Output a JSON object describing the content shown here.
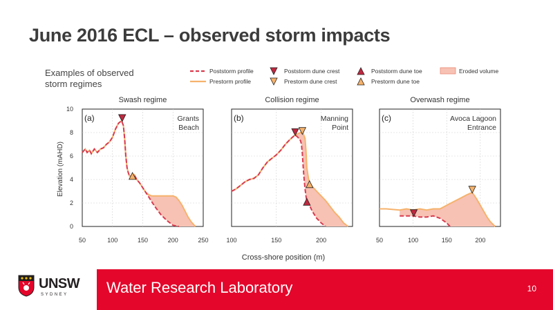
{
  "slide": {
    "title": "June 2016 ECL – observed storm impacts",
    "page_number": "10"
  },
  "footer": {
    "lab_name": "Water Research Laboratory",
    "logo_text": "UNSW",
    "logo_subtext": "SYDNEY",
    "brand_color": "#e4062b"
  },
  "figure": {
    "heading_line1": "Examples of observed",
    "heading_line2": "storm regimes",
    "xlabel": "Cross-shore position (m)",
    "ylabel": "Elevation (mAHD)"
  },
  "legend": {
    "poststorm_profile": "Poststorm profile",
    "prestorm_profile": "Prestorm profile",
    "poststorm_crest": "Poststorm dune crest",
    "prestorm_crest": "Prestorm dune crest",
    "poststorm_toe": "Poststorm dune toe",
    "prestorm_toe": "Prestorm dune toe",
    "eroded_volume": "Eroded volume"
  },
  "colors": {
    "prestorm": "#f6b26b",
    "poststorm": "#d93a4e",
    "eroded": "#f7c2b4",
    "crest_post": "#c0283f",
    "crest_pre": "#f6b26b"
  },
  "chart_data": [
    {
      "type": "line",
      "panel_label": "(a)",
      "title": "Swash regime",
      "site": [
        "Grants",
        "Beach"
      ],
      "xlim": [
        50,
        250
      ],
      "ylim": [
        0,
        10
      ],
      "xticks": [
        50,
        100,
        150,
        200,
        250
      ],
      "yticks": [
        0,
        2,
        4,
        6,
        8,
        10
      ],
      "series": [
        {
          "name": "Prestorm profile",
          "x": [
            50,
            55,
            58,
            62,
            65,
            70,
            75,
            80,
            85,
            90,
            95,
            100,
            105,
            110,
            115,
            118,
            120,
            122,
            124,
            126,
            128,
            130,
            133,
            136,
            140,
            145,
            150,
            155,
            160,
            165,
            170,
            180,
            190,
            200,
            205,
            210,
            215,
            220,
            225,
            230,
            237
          ],
          "y": [
            6.3,
            6.6,
            6.3,
            6.5,
            6.2,
            6.6,
            6.3,
            6.6,
            6.7,
            7.0,
            7.2,
            7.6,
            8.3,
            8.8,
            9.0,
            8.6,
            7.5,
            6.0,
            5.0,
            4.6,
            4.3,
            4.3,
            4.2,
            4.4,
            4.0,
            3.7,
            3.3,
            2.9,
            2.7,
            2.6,
            2.6,
            2.6,
            2.6,
            2.6,
            2.5,
            2.2,
            1.8,
            1.3,
            0.8,
            0.4,
            0.0
          ]
        },
        {
          "name": "Poststorm profile",
          "x": [
            50,
            55,
            58,
            62,
            65,
            70,
            75,
            80,
            85,
            90,
            95,
            100,
            105,
            110,
            115,
            118,
            120,
            122,
            124,
            126,
            128,
            130,
            133,
            136,
            140,
            145,
            150,
            155,
            160,
            165,
            170,
            180,
            190,
            200,
            210
          ],
          "y": [
            6.3,
            6.6,
            6.3,
            6.5,
            6.2,
            6.6,
            6.3,
            6.6,
            6.7,
            7.0,
            7.2,
            7.6,
            8.3,
            8.8,
            9.0,
            8.6,
            7.5,
            6.0,
            5.0,
            4.6,
            4.3,
            4.3,
            4.2,
            4.4,
            4.0,
            3.7,
            3.3,
            2.9,
            2.5,
            2.1,
            1.7,
            1.0,
            0.5,
            0.1,
            0.0
          ]
        }
      ],
      "markers": [
        {
          "kind": "prestorm_crest",
          "x": 116,
          "y": 9.0
        },
        {
          "kind": "poststorm_crest",
          "x": 116,
          "y": 9.0
        },
        {
          "kind": "prestorm_toe",
          "x": 133,
          "y": 4.3
        }
      ]
    },
    {
      "type": "line",
      "panel_label": "(b)",
      "title": "Collision regime",
      "site": [
        "Manning",
        "Point"
      ],
      "xlim": [
        100,
        235
      ],
      "ylim": [
        0,
        10
      ],
      "xticks": [
        100,
        150,
        200
      ],
      "yticks": [
        0,
        2,
        4,
        6,
        8,
        10
      ],
      "series": [
        {
          "name": "Prestorm profile",
          "x": [
            100,
            105,
            110,
            115,
            120,
            125,
            130,
            135,
            140,
            145,
            150,
            155,
            160,
            165,
            168,
            171,
            174,
            177,
            180,
            182,
            183,
            184,
            186,
            188,
            190,
            195,
            200,
            205,
            210,
            215,
            220,
            225,
            230
          ],
          "y": [
            3.0,
            3.2,
            3.5,
            3.8,
            4.0,
            4.1,
            4.4,
            5.0,
            5.5,
            5.8,
            6.1,
            6.5,
            7.0,
            7.4,
            7.6,
            7.8,
            7.9,
            8.0,
            7.9,
            7.5,
            6.5,
            5.0,
            4.0,
            3.6,
            3.4,
            3.0,
            2.6,
            2.2,
            1.7,
            1.2,
            0.8,
            0.3,
            0.0
          ]
        },
        {
          "name": "Poststorm profile",
          "x": [
            100,
            105,
            110,
            115,
            120,
            125,
            130,
            135,
            140,
            145,
            150,
            155,
            160,
            165,
            168,
            171,
            174,
            177,
            178,
            179,
            180,
            181,
            182,
            183,
            184,
            185,
            186,
            187,
            190,
            195,
            200,
            205
          ],
          "y": [
            3.0,
            3.2,
            3.5,
            3.8,
            4.0,
            4.1,
            4.4,
            5.0,
            5.5,
            5.8,
            6.1,
            6.5,
            7.0,
            7.4,
            7.6,
            7.8,
            7.6,
            7.3,
            7.0,
            6.2,
            5.0,
            4.0,
            3.2,
            2.6,
            2.2,
            2.1,
            2.0,
            1.8,
            1.3,
            0.7,
            0.3,
            0.0
          ]
        }
      ],
      "markers": [
        {
          "kind": "poststorm_crest",
          "x": 171,
          "y": 7.8
        },
        {
          "kind": "prestorm_crest",
          "x": 179,
          "y": 7.9
        },
        {
          "kind": "prestorm_toe",
          "x": 187,
          "y": 3.6
        },
        {
          "kind": "poststorm_toe",
          "x": 184,
          "y": 2.1
        }
      ]
    },
    {
      "type": "line",
      "panel_label": "(c)",
      "title": "Overwash regime",
      "site": [
        "Avoca Lagoon",
        "Entrance"
      ],
      "xlim": [
        50,
        230
      ],
      "ylim": [
        0,
        10
      ],
      "xticks": [
        50,
        100,
        150,
        200
      ],
      "yticks": [
        0,
        2,
        4,
        6,
        8,
        10
      ],
      "series": [
        {
          "name": "Prestorm profile",
          "x": [
            50,
            60,
            80,
            90,
            100,
            110,
            120,
            130,
            140,
            150,
            160,
            170,
            180,
            188,
            195,
            200,
            205,
            210,
            215,
            222
          ],
          "y": [
            1.5,
            1.5,
            1.4,
            1.5,
            1.4,
            1.5,
            1.4,
            1.5,
            1.5,
            1.8,
            2.1,
            2.4,
            2.7,
            2.9,
            2.3,
            1.8,
            1.3,
            0.8,
            0.4,
            0.0
          ]
        },
        {
          "name": "Poststorm profile",
          "x": [
            80,
            90,
            100,
            110,
            120,
            130,
            135,
            140,
            150,
            155
          ],
          "y": [
            0.9,
            0.9,
            0.9,
            0.8,
            0.8,
            0.9,
            0.8,
            0.7,
            0.3,
            0.0
          ]
        }
      ],
      "markers": [
        {
          "kind": "poststorm_crest",
          "x": 101,
          "y": 0.9
        },
        {
          "kind": "prestorm_crest",
          "x": 188,
          "y": 2.9
        }
      ]
    }
  ]
}
